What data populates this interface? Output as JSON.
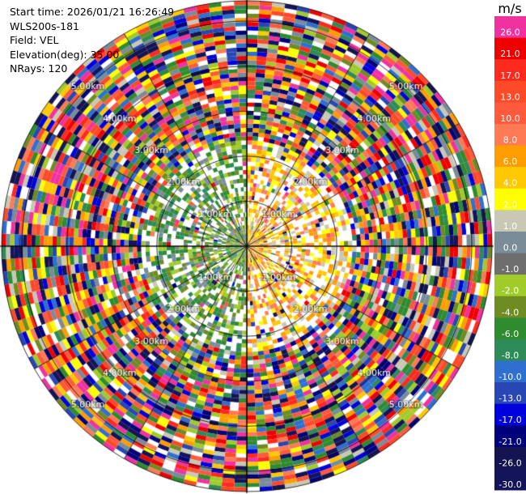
{
  "info": {
    "start_time": "Start time: 2026/01/21 16:26:49",
    "station": "WLS200s-181",
    "field": "Field: VEL",
    "elevation": "Elevation(deg): 35.00",
    "nrays": "NRays: 120"
  },
  "chart_data": {
    "type": "ppi-radar",
    "field": "VEL",
    "unit": "m/s",
    "n_rays": 120,
    "elevation_deg": 35.0,
    "range_ring_labels": [
      "1.00km",
      "2.00km",
      "3.00km",
      "4.00km",
      "5.00km"
    ],
    "range_rings_km": [
      1,
      2,
      3,
      4,
      5
    ],
    "max_range_km": 5.45,
    "colorbar": {
      "label": "m/s",
      "levels": [
        {
          "value": "26.0",
          "color": "#f032a0"
        },
        {
          "value": "21.0",
          "color": "#ee0000"
        },
        {
          "value": "17.0",
          "color": "#ff2a1e"
        },
        {
          "value": "13.0",
          "color": "#ff4a28"
        },
        {
          "value": "10.0",
          "color": "#ff5a3c"
        },
        {
          "value": "8.0",
          "color": "#ff7a55"
        },
        {
          "value": "6.0",
          "color": "#ff9d00"
        },
        {
          "value": "4.0",
          "color": "#ffc800"
        },
        {
          "value": "2.0",
          "color": "#ffff00"
        },
        {
          "value": "1.0",
          "color": "#c8c8b4"
        },
        {
          "value": "0.0",
          "color": "#7a8c98"
        },
        {
          "value": "-1.0",
          "color": "#6e6e6e"
        },
        {
          "value": "-2.0",
          "color": "#a0cc2a"
        },
        {
          "value": "-4.0",
          "color": "#6e8c22"
        },
        {
          "value": "-6.0",
          "color": "#2e8b2e"
        },
        {
          "value": "-8.0",
          "color": "#2e8b57"
        },
        {
          "value": "-10.0",
          "color": "#2e6fd0"
        },
        {
          "value": "-13.0",
          "color": "#2846b4"
        },
        {
          "value": "-17.0",
          "color": "#0000dc"
        },
        {
          "value": "-21.0",
          "color": "#00007a"
        },
        {
          "value": "-26.0",
          "color": "#141450"
        },
        {
          "value": "-30.0",
          "color": "#14145a"
        }
      ]
    }
  }
}
